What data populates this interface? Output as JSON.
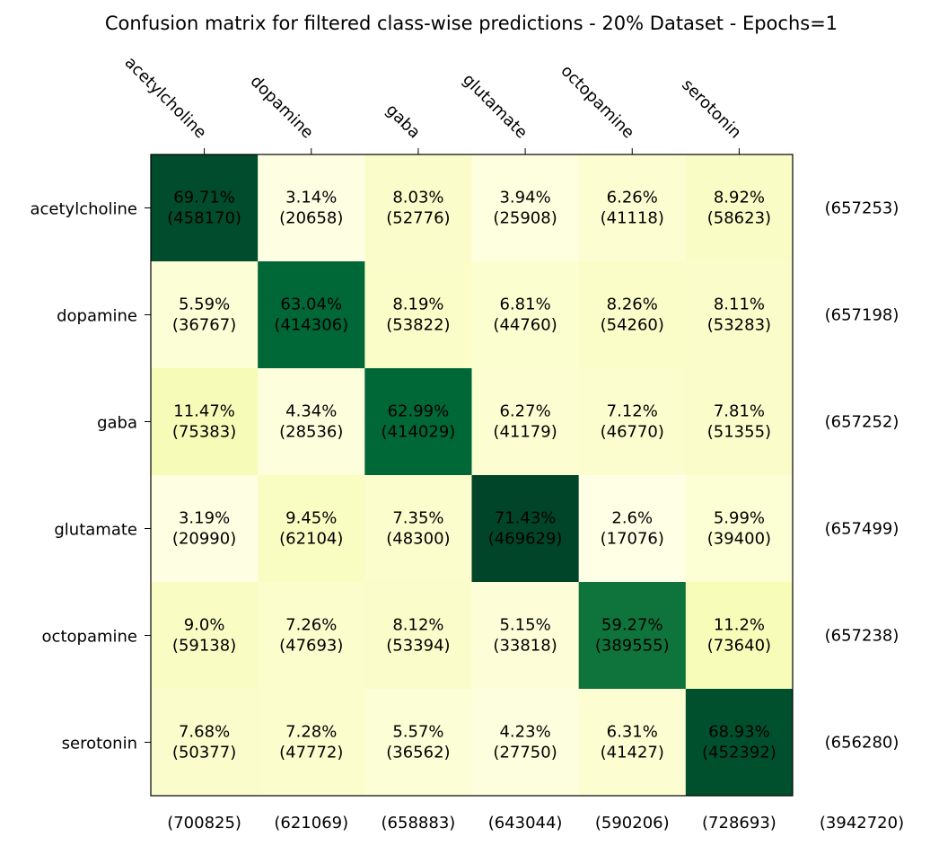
{
  "chart_data": {
    "type": "heatmap",
    "title": "Confusion matrix for filtered class-wise predictions - 20% Dataset - Epochs=1",
    "x_tick_labels": [
      "acetylcholine",
      "dopamine",
      "gaba",
      "glutamate",
      "octopamine",
      "serotonin"
    ],
    "y_tick_labels": [
      "acetylcholine",
      "dopamine",
      "gaba",
      "glutamate",
      "octopamine",
      "serotonin"
    ],
    "colormap": [
      "#ffffe5",
      "#f7fcb9",
      "#d9f0a3",
      "#addd8e",
      "#78c679",
      "#41ab5d",
      "#238443",
      "#006837",
      "#004529"
    ],
    "percent_labels": [
      [
        "69.71%",
        "3.14%",
        "8.03%",
        "3.94%",
        "6.26%",
        "8.92%"
      ],
      [
        "5.59%",
        "63.04%",
        "8.19%",
        "6.81%",
        "8.26%",
        "8.11%"
      ],
      [
        "11.47%",
        "4.34%",
        "62.99%",
        "6.27%",
        "7.12%",
        "7.81%"
      ],
      [
        "3.19%",
        "9.45%",
        "7.35%",
        "71.43%",
        "2.6%",
        "5.99%"
      ],
      [
        "9.0%",
        "7.26%",
        "8.12%",
        "5.15%",
        "59.27%",
        "11.2%"
      ],
      [
        "7.68%",
        "7.28%",
        "5.57%",
        "4.23%",
        "6.31%",
        "68.93%"
      ]
    ],
    "count_labels": [
      [
        "(458170)",
        "(20658)",
        "(52776)",
        "(25908)",
        "(41118)",
        "(58623)"
      ],
      [
        "(36767)",
        "(414306)",
        "(53822)",
        "(44760)",
        "(54260)",
        "(53283)"
      ],
      [
        "(75383)",
        "(28536)",
        "(414029)",
        "(41179)",
        "(46770)",
        "(51355)"
      ],
      [
        "(20990)",
        "(62104)",
        "(48300)",
        "(469629)",
        "(17076)",
        "(39400)"
      ],
      [
        "(59138)",
        "(47693)",
        "(53394)",
        "(33818)",
        "(389555)",
        "(73640)"
      ],
      [
        "(50377)",
        "(47772)",
        "(36562)",
        "(27750)",
        "(41427)",
        "(452392)"
      ]
    ],
    "row_total_labels": [
      "(657253)",
      "(657198)",
      "(657252)",
      "(657499)",
      "(657238)",
      "(656280)"
    ],
    "column_total_labels": [
      "(700825)",
      "(621069)",
      "(658883)",
      "(643044)",
      "(590206)",
      "(728693)"
    ],
    "grand_total_label": "(3942720)"
  }
}
